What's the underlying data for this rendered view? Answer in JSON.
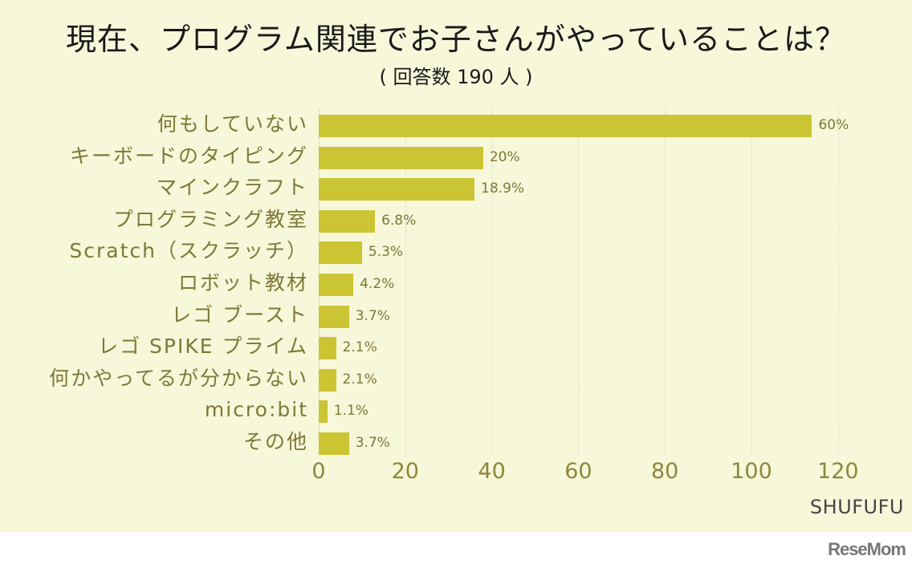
{
  "header": {
    "title": "現在、プログラム関連でお子さんがやっていることは？",
    "subtitle": "( 回答数 190 人 )"
  },
  "source": "SHUFUFU",
  "logo": "ReseMom",
  "colors": {
    "bar": "#cbc433",
    "label": "#7d7936",
    "background": "#f7f7da"
  },
  "chart_data": {
    "type": "bar",
    "orientation": "horizontal",
    "title": "現在、プログラム関連でお子さんがやっていることは？",
    "subtitle": "( 回答数 190 人 )",
    "categories": [
      "何もしていない",
      "キーボードのタイピング",
      "マインクラフト",
      "プログラミング教室",
      "Scratch（スクラッチ）",
      "ロボット教材",
      "レゴ ブースト",
      "レゴ SPIKE プライム",
      "何かやってるが分からない",
      "micro:bit",
      "その他"
    ],
    "values": [
      114,
      38,
      36,
      13,
      10,
      8,
      7,
      4,
      4,
      2,
      7
    ],
    "labels": [
      "60%",
      "20%",
      "18.9%",
      "6.8%",
      "5.3%",
      "4.2%",
      "3.7%",
      "2.1%",
      "2.1%",
      "1.1%",
      "3.7%"
    ],
    "xlabel": "",
    "ylabel": "",
    "xlim": [
      0,
      120
    ],
    "xticks": [
      "0",
      "20",
      "40",
      "60",
      "80",
      "100",
      "120"
    ],
    "grid": true
  }
}
